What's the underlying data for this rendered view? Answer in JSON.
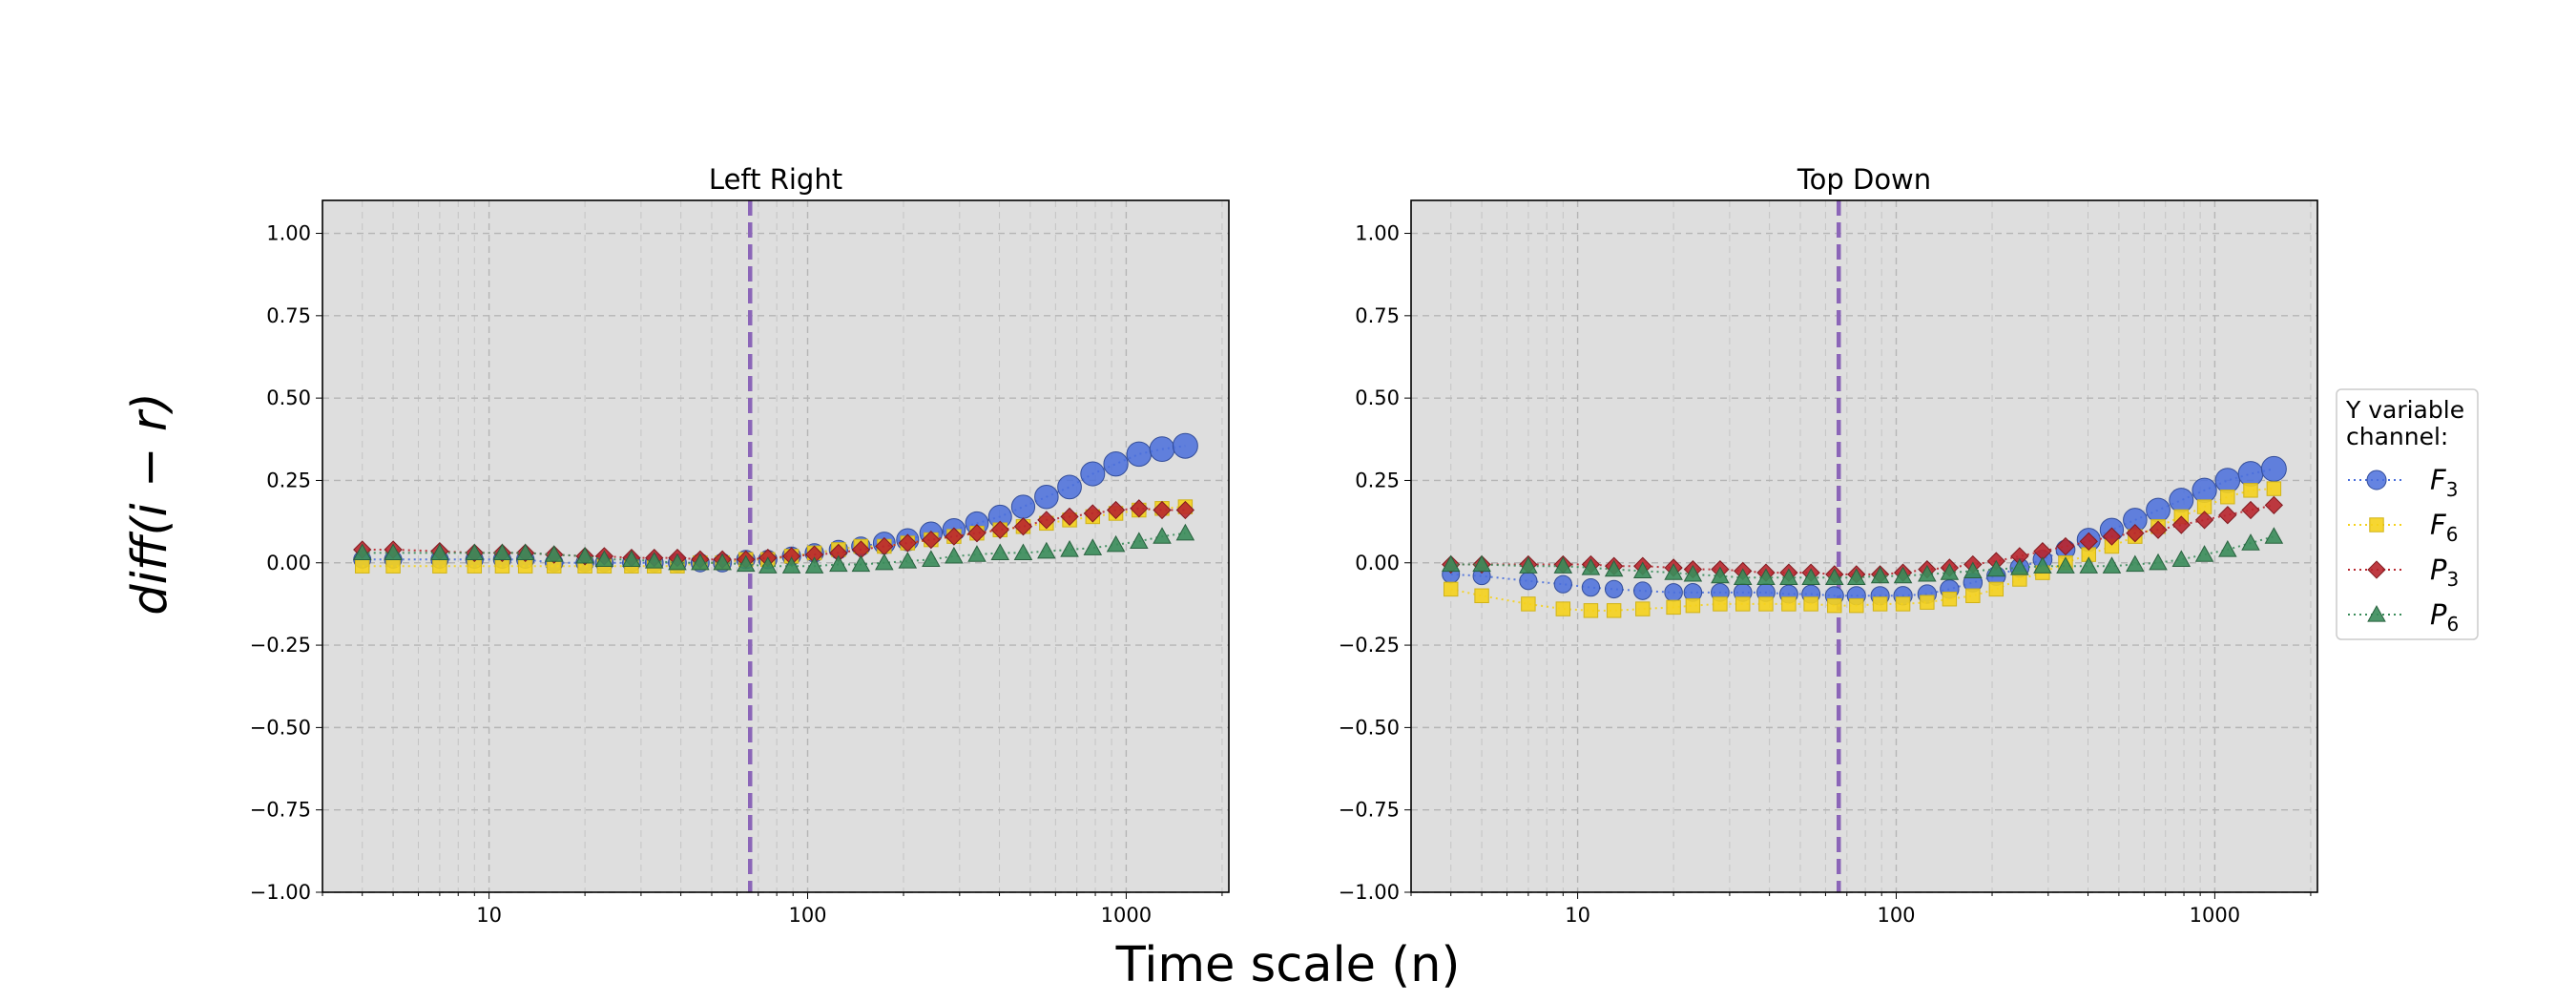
{
  "figure": {
    "ylabel": "diff(i − r)",
    "xlabel": "Time scale (n)"
  },
  "legend": {
    "title_line1": "Y variable",
    "title_line2": "channel:",
    "entries": [
      {
        "base": "F",
        "sub": "3",
        "color": "#4a6fdc",
        "marker": "circle"
      },
      {
        "base": "F",
        "sub": "6",
        "color": "#f5d21c",
        "marker": "square"
      },
      {
        "base": "P",
        "sub": "3",
        "color": "#b8262e",
        "marker": "diamond"
      },
      {
        "base": "P",
        "sub": "6",
        "color": "#3a8c5a",
        "marker": "triangle"
      }
    ]
  },
  "chart_data": [
    {
      "type": "scatter",
      "title": "Left Right",
      "xscale": "log",
      "xlim": [
        3,
        2100
      ],
      "ylim": [
        -1.0,
        1.1
      ],
      "yticks": [
        -1.0,
        -0.75,
        -0.5,
        -0.25,
        0.0,
        0.25,
        0.5,
        0.75,
        1.0
      ],
      "ytick_labels": [
        "−1.00",
        "−0.75",
        "−0.50",
        "−0.25",
        "0.00",
        "0.25",
        "0.50",
        "0.75",
        "1.00"
      ],
      "xticks": [
        10,
        100,
        1000
      ],
      "xtick_labels": [
        "10",
        "100",
        "1000"
      ],
      "vline_x": 66,
      "vline_color": "#8b65b8",
      "grid": true,
      "background": "#dedede",
      "x": [
        4,
        5,
        7,
        9,
        11,
        13,
        16,
        20,
        23,
        28,
        33,
        39,
        46,
        54,
        64,
        75,
        89,
        105,
        125,
        147,
        174,
        206,
        244,
        288,
        340,
        402,
        475,
        562,
        664,
        785,
        928,
        1097,
        1296,
        1533
      ],
      "series": [
        {
          "name": "F3",
          "values": [
            0.01,
            0.01,
            0.01,
            0.01,
            0.01,
            0.01,
            0.0,
            0.0,
            0.0,
            0.0,
            0.0,
            0.0,
            0.0,
            0.0,
            0.01,
            0.01,
            0.02,
            0.03,
            0.04,
            0.05,
            0.06,
            0.07,
            0.09,
            0.1,
            0.12,
            0.14,
            0.17,
            0.2,
            0.23,
            0.27,
            0.3,
            0.33,
            0.345,
            0.355
          ]
        },
        {
          "name": "F6",
          "values": [
            -0.01,
            -0.01,
            -0.01,
            -0.01,
            -0.01,
            -0.01,
            -0.01,
            -0.01,
            -0.01,
            -0.01,
            -0.01,
            -0.01,
            0.0,
            0.0,
            0.01,
            0.01,
            0.02,
            0.03,
            0.04,
            0.05,
            0.05,
            0.06,
            0.07,
            0.08,
            0.09,
            0.1,
            0.11,
            0.12,
            0.13,
            0.14,
            0.15,
            0.16,
            0.165,
            0.17
          ]
        },
        {
          "name": "P3",
          "values": [
            0.04,
            0.04,
            0.035,
            0.03,
            0.03,
            0.03,
            0.025,
            0.02,
            0.02,
            0.015,
            0.015,
            0.015,
            0.01,
            0.01,
            0.01,
            0.015,
            0.02,
            0.025,
            0.03,
            0.04,
            0.05,
            0.06,
            0.07,
            0.08,
            0.09,
            0.1,
            0.11,
            0.13,
            0.14,
            0.15,
            0.16,
            0.165,
            0.16,
            0.16
          ]
        },
        {
          "name": "P6",
          "values": [
            0.03,
            0.03,
            0.03,
            0.03,
            0.03,
            0.03,
            0.025,
            0.02,
            0.01,
            0.01,
            0.005,
            0.0,
            0.0,
            0.0,
            -0.005,
            -0.01,
            -0.01,
            -0.01,
            -0.005,
            -0.005,
            0.0,
            0.005,
            0.01,
            0.02,
            0.025,
            0.03,
            0.03,
            0.035,
            0.04,
            0.045,
            0.055,
            0.065,
            0.08,
            0.09
          ]
        }
      ]
    },
    {
      "type": "scatter",
      "title": "Top Down",
      "xscale": "log",
      "xlim": [
        3,
        2100
      ],
      "ylim": [
        -1.0,
        1.1
      ],
      "yticks": [
        -1.0,
        -0.75,
        -0.5,
        -0.25,
        0.0,
        0.25,
        0.5,
        0.75,
        1.0
      ],
      "ytick_labels": [
        "−1.00",
        "−0.75",
        "−0.50",
        "−0.25",
        "0.00",
        "0.25",
        "0.50",
        "0.75",
        "1.00"
      ],
      "xticks": [
        10,
        100,
        1000
      ],
      "xtick_labels": [
        "10",
        "100",
        "1000"
      ],
      "vline_x": 66,
      "vline_color": "#8b65b8",
      "grid": true,
      "background": "#dedede",
      "x": [
        4,
        5,
        7,
        9,
        11,
        13,
        16,
        20,
        23,
        28,
        33,
        39,
        46,
        54,
        64,
        75,
        89,
        105,
        125,
        147,
        174,
        206,
        244,
        288,
        340,
        402,
        475,
        562,
        664,
        785,
        928,
        1097,
        1296,
        1533
      ],
      "series": [
        {
          "name": "F3",
          "values": [
            -0.035,
            -0.04,
            -0.055,
            -0.065,
            -0.075,
            -0.08,
            -0.085,
            -0.09,
            -0.09,
            -0.09,
            -0.09,
            -0.09,
            -0.095,
            -0.095,
            -0.1,
            -0.1,
            -0.1,
            -0.1,
            -0.095,
            -0.08,
            -0.06,
            -0.04,
            -0.015,
            0.01,
            0.04,
            0.07,
            0.1,
            0.13,
            0.16,
            0.19,
            0.22,
            0.25,
            0.27,
            0.285
          ]
        },
        {
          "name": "F6",
          "values": [
            -0.08,
            -0.1,
            -0.125,
            -0.14,
            -0.145,
            -0.145,
            -0.14,
            -0.135,
            -0.13,
            -0.125,
            -0.125,
            -0.125,
            -0.125,
            -0.125,
            -0.13,
            -0.13,
            -0.125,
            -0.125,
            -0.12,
            -0.11,
            -0.1,
            -0.08,
            -0.05,
            -0.03,
            0.0,
            0.025,
            0.05,
            0.08,
            0.11,
            0.14,
            0.17,
            0.2,
            0.22,
            0.225
          ]
        },
        {
          "name": "P3",
          "values": [
            -0.005,
            -0.005,
            -0.005,
            -0.005,
            -0.005,
            -0.01,
            -0.01,
            -0.015,
            -0.02,
            -0.02,
            -0.025,
            -0.03,
            -0.03,
            -0.03,
            -0.035,
            -0.035,
            -0.035,
            -0.03,
            -0.02,
            -0.015,
            -0.005,
            0.005,
            0.02,
            0.035,
            0.05,
            0.065,
            0.08,
            0.09,
            0.1,
            0.115,
            0.13,
            0.145,
            0.16,
            0.175
          ]
        },
        {
          "name": "P6",
          "values": [
            -0.005,
            -0.005,
            -0.01,
            -0.01,
            -0.015,
            -0.02,
            -0.025,
            -0.03,
            -0.035,
            -0.04,
            -0.045,
            -0.045,
            -0.045,
            -0.045,
            -0.045,
            -0.045,
            -0.04,
            -0.04,
            -0.035,
            -0.03,
            -0.025,
            -0.02,
            -0.015,
            -0.01,
            -0.01,
            -0.01,
            -0.01,
            -0.005,
            0.0,
            0.01,
            0.025,
            0.04,
            0.06,
            0.08
          ]
        }
      ]
    }
  ]
}
